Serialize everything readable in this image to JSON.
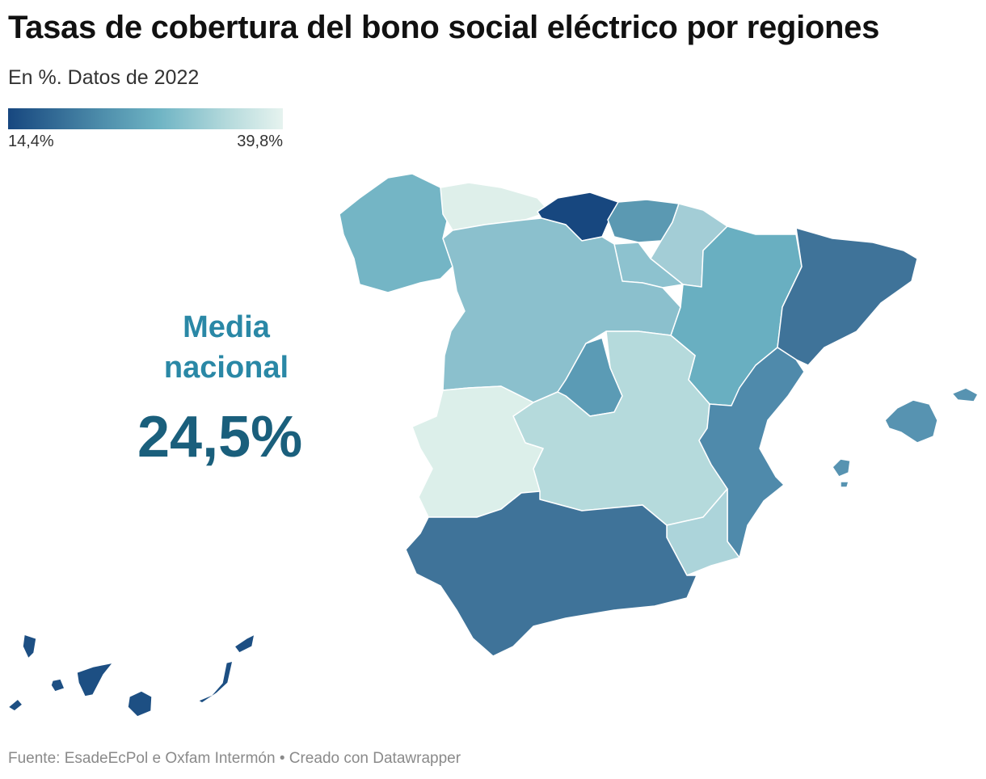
{
  "title": "Tasas de cobertura del bono social eléctrico por regiones",
  "subtitle": "En %. Datos de 2022",
  "legend": {
    "min_label": "14,4%",
    "max_label": "39,8%",
    "min_value": 14.4,
    "max_value": 39.8,
    "min_color": "#17477f",
    "max_color": "#e6f3ef"
  },
  "annotation": {
    "label_line1": "Media",
    "label_line2": "nacional",
    "value": "24,5%"
  },
  "footer": "Fuente: EsadeEcPol e Oxfam Intermón • Creado con Datawrapper",
  "regions": [
    {
      "id": "galicia",
      "color": "#74b5c5"
    },
    {
      "id": "asturias",
      "color": "#deefea"
    },
    {
      "id": "cantabria",
      "color": "#17477f"
    },
    {
      "id": "pais-vasco",
      "color": "#5b99b2"
    },
    {
      "id": "navarra",
      "color": "#a3cdd6"
    },
    {
      "id": "la-rioja",
      "color": "#8dc2cf"
    },
    {
      "id": "aragon",
      "color": "#69afc1"
    },
    {
      "id": "cataluna",
      "color": "#3f7399"
    },
    {
      "id": "castilla-y-leon",
      "color": "#8bc0cd"
    },
    {
      "id": "madrid",
      "color": "#5b9bb5"
    },
    {
      "id": "castilla-la-mancha",
      "color": "#b5dadc"
    },
    {
      "id": "extremadura",
      "color": "#dcefea"
    },
    {
      "id": "comunidad-valenciana",
      "color": "#4f8aab"
    },
    {
      "id": "murcia",
      "color": "#acd4da"
    },
    {
      "id": "andalucia",
      "color": "#3f7399"
    },
    {
      "id": "baleares",
      "color": "#5793b1"
    },
    {
      "id": "canarias",
      "color": "#1d4f83"
    }
  ]
}
